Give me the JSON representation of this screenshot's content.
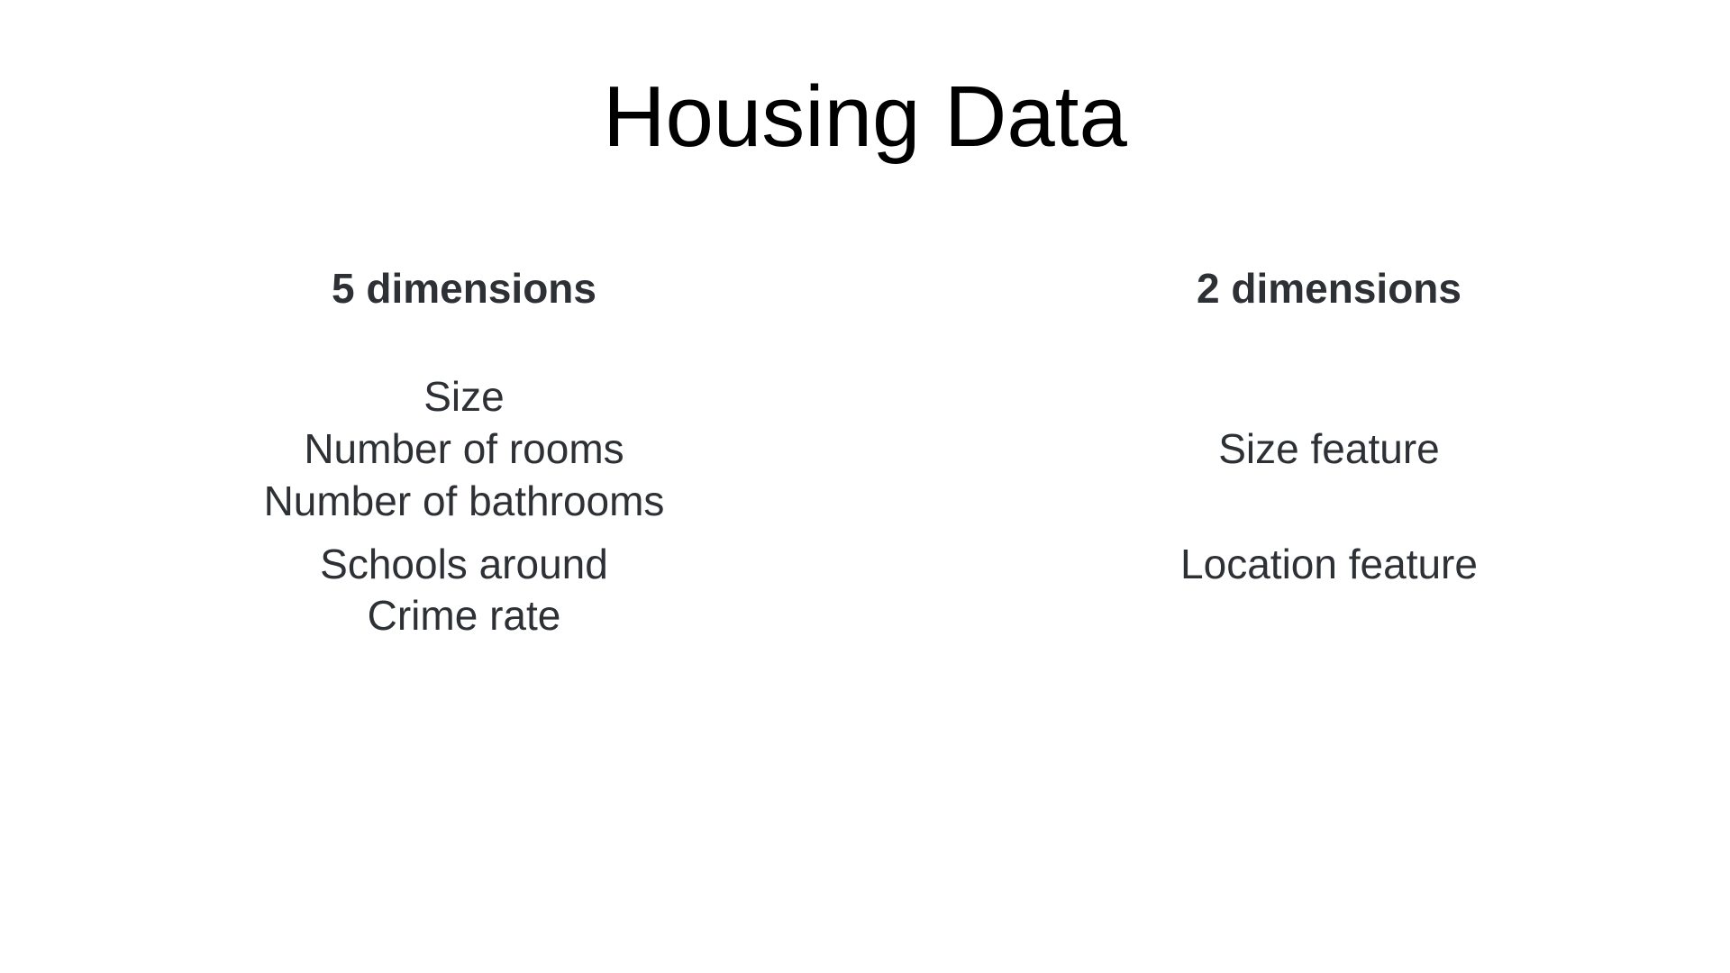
{
  "slide": {
    "title": "Housing Data"
  },
  "left_column": {
    "heading": "5 dimensions",
    "items": [
      "Size",
      "Number of rooms",
      "Number of bathrooms",
      "Schools around",
      "Crime rate"
    ]
  },
  "right_column": {
    "heading": "2 dimensions",
    "items": [
      "Size feature",
      "Location feature"
    ]
  },
  "colors": {
    "title_text": "#000000",
    "body_text": "#2d3035",
    "background": "#ffffff"
  }
}
